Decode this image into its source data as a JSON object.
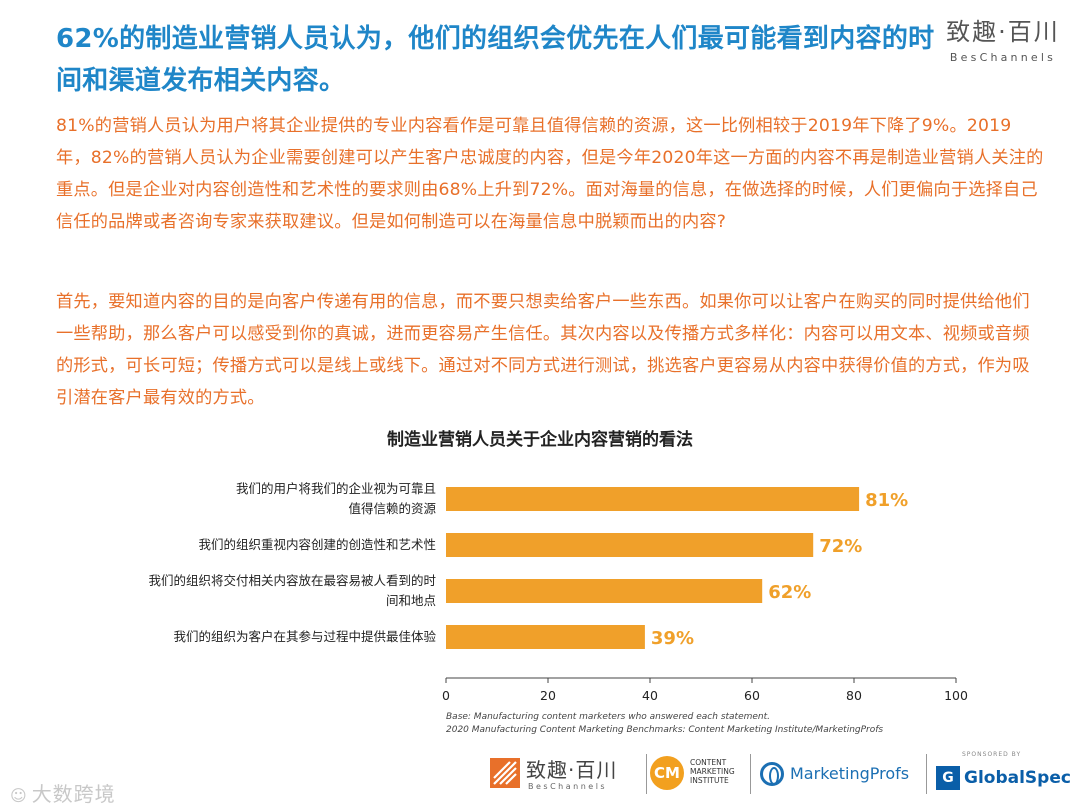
{
  "headline": "62%的制造业营销人员认为，他们的组织会优先在人们最可能看到内容的时间和渠道发布相关内容。",
  "brand": {
    "cn": "致趣·百川",
    "en": "BesChannels"
  },
  "paragraph1": "81%的营销人员认为用户将其企业提供的专业内容看作是可靠且值得信赖的资源，这一比例相较于2019年下降了9%。2019年，82%的营销人员认为企业需要创建可以产生客户忠诚度的内容，但是今年2020年这一方面的内容不再是制造业营销人关注的重点。但是企业对内容创造性和艺术性的要求则由68%上升到72%。面对海量的信息，在做选择的时候，人们更偏向于选择自己信任的品牌或者咨询专家来获取建议。但是如何制造可以在海量信息中脱颖而出的内容?",
  "paragraph2": "首先，要知道内容的目的是向客户传递有用的信息，而不要只想卖给客户一些东西。如果你可以让客户在购买的同时提供给他们一些帮助，那么客户可以感受到你的真诚，进而更容易产生信任。其次内容以及传播方式多样化：内容可以用文本、视频或音频的形式，可长可短；传播方式可以是线上或线下。通过对不同方式进行测试，挑选客户更容易从内容中获得价值的方式，作为吸引潜在客户最有效的方式。",
  "chart_data": {
    "type": "bar",
    "orientation": "horizontal",
    "title": "制造业营销人员关于企业内容营销的看法",
    "categories": [
      [
        "我们的用户将我们的企业视为可靠且",
        "值得信赖的资源"
      ],
      [
        "我们的组织重视内容创建的创造性和艺术性"
      ],
      [
        "我们的组织将交付相关内容放在最容易被人看到的时",
        "间和地点"
      ],
      [
        "我们的组织为客户在其参与过程中提供最佳体验"
      ]
    ],
    "values": [
      81,
      72,
      62,
      39
    ],
    "value_labels": [
      "81%",
      "72%",
      "62%",
      "39%"
    ],
    "xlim": [
      0,
      100
    ],
    "xticks": [
      0,
      20,
      40,
      60,
      80,
      100
    ],
    "bar_color": "#f0a02a",
    "label_color": "#f0a02a",
    "grid": false
  },
  "notes": [
    "Base: Manufacturing content marketers who answered each statement.",
    "2020 Manufacturing Content Marketing Benchmarks: Content Marketing Institute/MarketingProfs"
  ],
  "logos": {
    "beschannels_cn": "致趣·百川",
    "beschannels_en": "BesChannels",
    "cmi_mark": "CM",
    "cmi_text": "CONTENT MARKETING INSTITUTE",
    "marketingprofs": "MarketingProfs",
    "sponsored": "SPONSORED BY",
    "globalspec_mark": "G",
    "globalspec": "GlobalSpec"
  },
  "watermark": "大数跨境",
  "colors": {
    "headline": "#1f86c8",
    "body": "#e8702a",
    "bar": "#f0a02a"
  }
}
